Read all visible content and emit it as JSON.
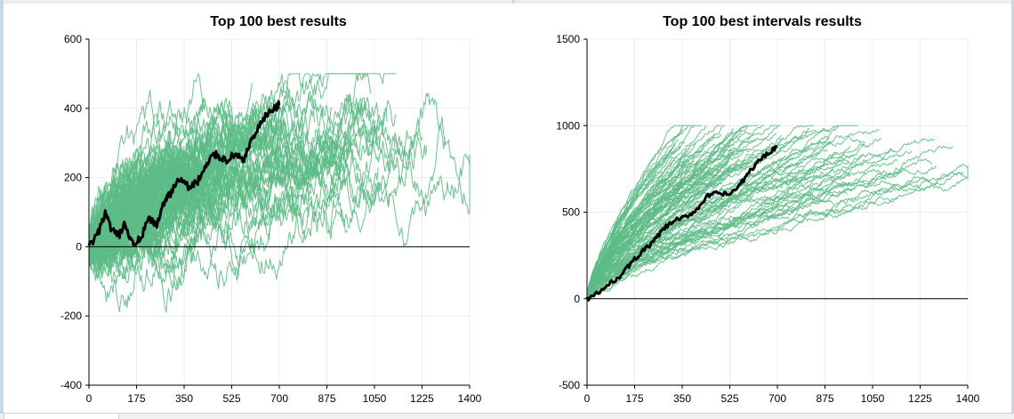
{
  "chart_data": [
    {
      "type": "line",
      "title": "Top 100 best results",
      "xlabel": "",
      "ylabel": "",
      "xlim": [
        0,
        1400
      ],
      "ylim": [
        -400,
        600
      ],
      "xticks": [
        "0",
        "175",
        "350",
        "525",
        "700",
        "875",
        "1050",
        "1225",
        "1400"
      ],
      "yticks": [
        "-400",
        "-200",
        "0",
        "200",
        "400",
        "600"
      ],
      "grid": true,
      "colors": {
        "bundle": "#5dbb86",
        "highlight": "#000000"
      },
      "bundle": {
        "count": 100,
        "lengths": [
          200,
          250,
          300,
          300,
          350,
          350,
          400,
          400,
          400,
          420,
          450,
          450,
          500,
          500,
          520,
          550,
          600,
          650,
          700,
          750,
          800,
          850,
          900,
          950,
          1000,
          1060,
          1080,
          1100,
          1200,
          1400
        ],
        "end_values": [
          120,
          150,
          180,
          200,
          160,
          220,
          250,
          180,
          230,
          280,
          260,
          300,
          240,
          200,
          320,
          280,
          300,
          330,
          350,
          300,
          270,
          320,
          260,
          280,
          300,
          380,
          470,
          330,
          300,
          310
        ],
        "min": -200,
        "max": 500
      },
      "highlight": {
        "x": [
          0,
          30,
          60,
          80,
          110,
          130,
          160,
          190,
          220,
          250,
          280,
          300,
          330,
          370,
          400,
          430,
          460,
          480,
          510,
          540,
          570,
          600,
          630,
          660,
          690,
          700
        ],
        "y": [
          0,
          30,
          100,
          50,
          30,
          60,
          10,
          20,
          80,
          60,
          140,
          150,
          200,
          170,
          190,
          230,
          270,
          260,
          250,
          270,
          250,
          310,
          350,
          390,
          400,
          415
        ]
      }
    },
    {
      "type": "line",
      "title": "Top 100 best intervals results",
      "xlabel": "",
      "ylabel": "",
      "xlim": [
        0,
        1400
      ],
      "ylim": [
        -500,
        1500
      ],
      "xticks": [
        "0",
        "175",
        "350",
        "525",
        "700",
        "875",
        "1050",
        "1225",
        "1400"
      ],
      "yticks": [
        "-500",
        "0",
        "500",
        "1000",
        "1500"
      ],
      "grid": true,
      "colors": {
        "bundle": "#5dbb86",
        "highlight": "#000000"
      },
      "bundle": {
        "count": 100,
        "lengths": [
          300,
          330,
          350,
          380,
          400,
          420,
          450,
          480,
          500,
          520,
          550,
          580,
          600,
          650,
          700,
          750,
          800,
          850,
          900,
          950,
          1000,
          1050,
          1080,
          1100,
          1150,
          1200,
          1300,
          1400
        ],
        "end_values": [
          800,
          850,
          900,
          920,
          980,
          900,
          820,
          880,
          900,
          860,
          880,
          900,
          850,
          900,
          880,
          820,
          860,
          900,
          780,
          760,
          820,
          900,
          880,
          760,
          740,
          780,
          800,
          770
        ],
        "min": -20,
        "max": 1000
      },
      "highlight": {
        "x": [
          0,
          40,
          80,
          120,
          160,
          200,
          240,
          280,
          320,
          360,
          400,
          440,
          480,
          520,
          560,
          600,
          640,
          680,
          700
        ],
        "y": [
          0,
          30,
          80,
          130,
          200,
          270,
          320,
          400,
          450,
          470,
          510,
          590,
          610,
          600,
          650,
          740,
          810,
          860,
          880
        ]
      }
    }
  ]
}
